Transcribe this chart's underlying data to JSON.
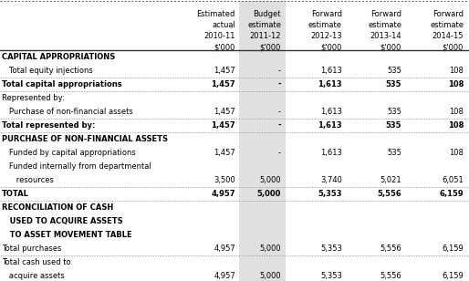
{
  "col_headers": [
    [
      "Estimated",
      "actual",
      "2010-11",
      "$'000"
    ],
    [
      "Budget",
      "estimate",
      "2011-12",
      "$'000"
    ],
    [
      "Forward",
      "estimate",
      "2012-13",
      "$'000"
    ],
    [
      "Forward",
      "estimate",
      "2013-14",
      "$'000"
    ],
    [
      "Forward",
      "estimate",
      "2014-15",
      "$'000"
    ]
  ],
  "rows": [
    {
      "label": "CAPITAL APPROPRIATIONS",
      "indent": 0,
      "bold": true,
      "values": [
        "",
        "",
        "",
        "",
        ""
      ],
      "border_bottom": false
    },
    {
      "label": "   Total equity injections",
      "indent": 0,
      "bold": false,
      "values": [
        "1,457",
        "-",
        "1,613",
        "535",
        "108"
      ],
      "border_bottom": true
    },
    {
      "label": "Total capital appropriations",
      "indent": 0,
      "bold": true,
      "values": [
        "1,457",
        "-",
        "1,613",
        "535",
        "108"
      ],
      "border_bottom": true
    },
    {
      "label": "Represented by:",
      "indent": 0,
      "bold": false,
      "values": [
        "",
        "",
        "",
        "",
        ""
      ],
      "border_bottom": false
    },
    {
      "label": "   Purchase of non-financial assets",
      "indent": 0,
      "bold": false,
      "values": [
        "1,457",
        "-",
        "1,613",
        "535",
        "108"
      ],
      "border_bottom": true
    },
    {
      "label": "Total represented by:",
      "indent": 0,
      "bold": true,
      "values": [
        "1,457",
        "-",
        "1,613",
        "535",
        "108"
      ],
      "border_bottom": true
    },
    {
      "label": "PURCHASE OF NON-FINANCIAL ASSETS",
      "indent": 0,
      "bold": true,
      "values": [
        "",
        "",
        "",
        "",
        ""
      ],
      "border_bottom": false
    },
    {
      "label": "   Funded by capital appropriations",
      "indent": 0,
      "bold": false,
      "values": [
        "1,457",
        "-",
        "1,613",
        "535",
        "108"
      ],
      "border_bottom": false
    },
    {
      "label": "   Funded internally from departmental",
      "indent": 0,
      "bold": false,
      "values": [
        "",
        "",
        "",
        "",
        ""
      ],
      "border_bottom": false
    },
    {
      "label": "      resources",
      "indent": 0,
      "bold": false,
      "values": [
        "3,500",
        "5,000",
        "3,740",
        "5,021",
        "6,051"
      ],
      "border_bottom": true
    },
    {
      "label": "TOTAL",
      "indent": 0,
      "bold": true,
      "values": [
        "4,957",
        "5,000",
        "5,353",
        "5,556",
        "6,159"
      ],
      "border_bottom": true
    },
    {
      "label": "RECONCILIATION OF CASH",
      "indent": 0,
      "bold": true,
      "values": [
        "",
        "",
        "",
        "",
        ""
      ],
      "border_bottom": false
    },
    {
      "label": "   USED TO ACQUIRE ASSETS",
      "indent": 0,
      "bold": true,
      "values": [
        "",
        "",
        "",
        "",
        ""
      ],
      "border_bottom": false
    },
    {
      "label": "   TO ASSET MOVEMENT TABLE",
      "indent": 0,
      "bold": true,
      "values": [
        "",
        "",
        "",
        "",
        ""
      ],
      "border_bottom": false
    },
    {
      "label": "Total purchases",
      "indent": 0,
      "bold": false,
      "values": [
        "4,957",
        "5,000",
        "5,353",
        "5,556",
        "6,159"
      ],
      "border_bottom": true
    },
    {
      "label": "Total cash used to",
      "indent": 0,
      "bold": false,
      "values": [
        "",
        "",
        "",
        "",
        ""
      ],
      "border_bottom": false
    },
    {
      "label": "   acquire assets",
      "indent": 0,
      "bold": false,
      "values": [
        "4,957",
        "5,000",
        "5,353",
        "5,556",
        "6,159"
      ],
      "border_bottom": true
    }
  ],
  "bg_color": "#ffffff",
  "shade_color": "#e0e0e0",
  "font_size": 6.0,
  "header_font_size": 6.0
}
